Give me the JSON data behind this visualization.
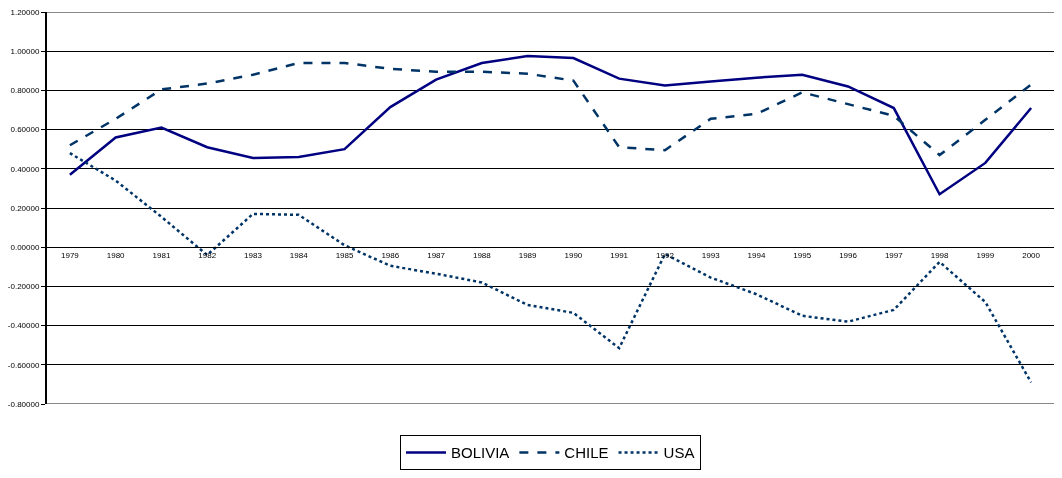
{
  "chart_data": {
    "type": "line",
    "categories": [
      "1979",
      "1980",
      "1981",
      "1982",
      "1983",
      "1984",
      "1985",
      "1986",
      "1987",
      "1988",
      "1989",
      "1990",
      "1991",
      "1992",
      "1993",
      "1994",
      "1995",
      "1996",
      "1997",
      "1998",
      "1999",
      "2000"
    ],
    "series": [
      {
        "name": "BOLIVIA",
        "color": "#000080",
        "line_style": "solid",
        "values": [
          0.37,
          0.56,
          0.61,
          0.51,
          0.455,
          0.46,
          0.5,
          0.715,
          0.855,
          0.94,
          0.975,
          0.965,
          0.86,
          0.825,
          0.845,
          0.865,
          0.88,
          0.82,
          0.71,
          0.27,
          0.43,
          0.71
        ]
      },
      {
        "name": "CHILE",
        "color": "#003366",
        "line_style": "dashed",
        "values": [
          0.52,
          0.655,
          0.805,
          0.835,
          0.88,
          0.94,
          0.94,
          0.91,
          0.895,
          0.895,
          0.885,
          0.85,
          0.51,
          0.495,
          0.655,
          0.68,
          0.79,
          0.73,
          0.67,
          0.47,
          0.65,
          0.83
        ]
      },
      {
        "name": "USA",
        "color": "#003366",
        "line_style": "dotted",
        "values": [
          0.48,
          0.34,
          0.155,
          -0.04,
          0.17,
          0.165,
          0.01,
          -0.095,
          -0.135,
          -0.18,
          -0.295,
          -0.335,
          -0.515,
          -0.035,
          -0.155,
          -0.24,
          -0.35,
          -0.38,
          -0.32,
          -0.075,
          -0.28,
          -0.69
        ]
      }
    ],
    "ylim": [
      -0.8,
      1.2
    ],
    "yticks": [
      {
        "value": -0.8,
        "label": "-0.80000"
      },
      {
        "value": -0.6,
        "label": "-0.60000"
      },
      {
        "value": -0.4,
        "label": "-0.40000"
      },
      {
        "value": -0.2,
        "label": "-0.20000"
      },
      {
        "value": 0,
        "label": "0.00000"
      },
      {
        "value": 0.2,
        "label": "0.20000"
      },
      {
        "value": 0.4,
        "label": "0.40000"
      },
      {
        "value": 0.6,
        "label": "0.60000"
      },
      {
        "value": 0.8,
        "label": "0.80000"
      },
      {
        "value": 1.0,
        "label": "1.00000"
      },
      {
        "value": 1.2,
        "label": "1.20000"
      }
    ],
    "grid": "y",
    "legend": "bottom",
    "marker": "none"
  }
}
